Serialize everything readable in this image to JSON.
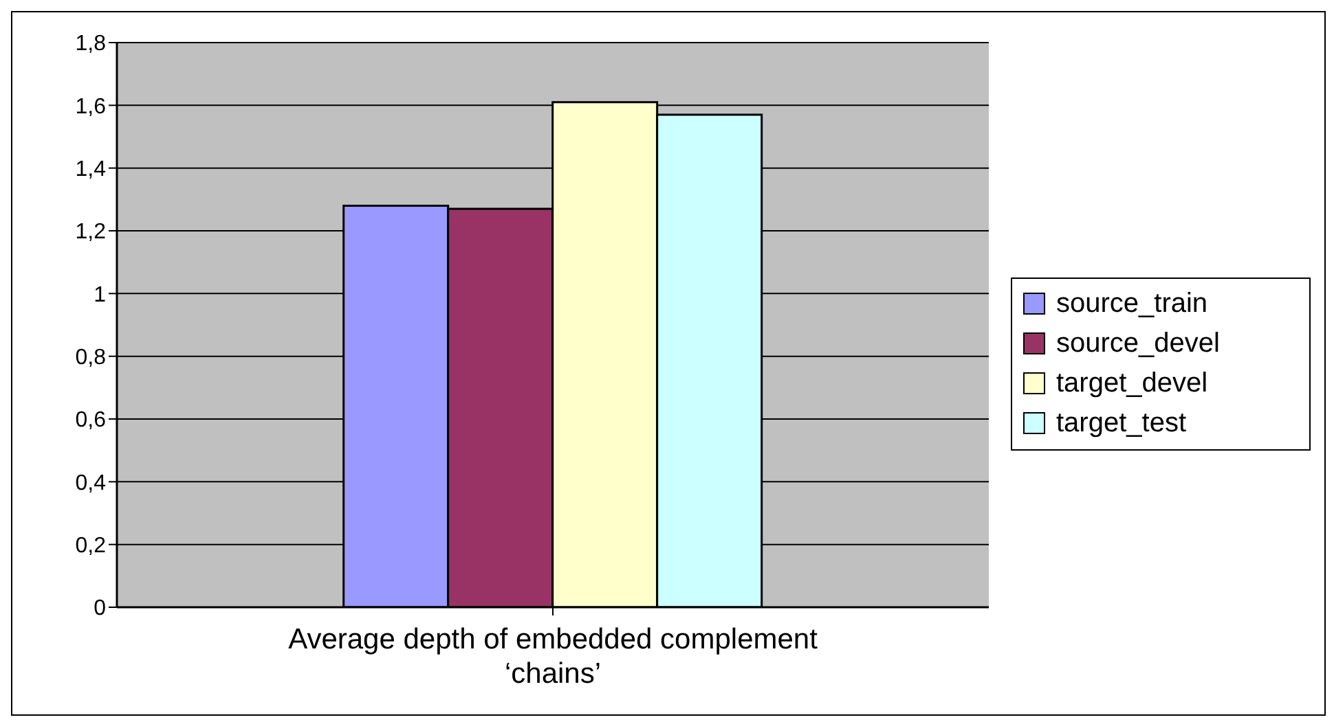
{
  "chart_data": {
    "type": "bar",
    "categories": [
      "Average depth of embedded complement ‘chains’"
    ],
    "series": [
      {
        "name": "source_train",
        "color": "#9999ff",
        "values": [
          1.28
        ]
      },
      {
        "name": "source_devel",
        "color": "#993366",
        "values": [
          1.27
        ]
      },
      {
        "name": "target_devel",
        "color": "#ffffcc",
        "values": [
          1.61
        ]
      },
      {
        "name": "target_test",
        "color": "#ccffff",
        "values": [
          1.57
        ]
      }
    ],
    "ylim": [
      0,
      1.8
    ],
    "yticks": [
      {
        "value": 0,
        "label": "0"
      },
      {
        "value": 0.2,
        "label": "0,2"
      },
      {
        "value": 0.4,
        "label": "0,4"
      },
      {
        "value": 0.6,
        "label": "0,6"
      },
      {
        "value": 0.8,
        "label": "0,8"
      },
      {
        "value": 1,
        "label": "1"
      },
      {
        "value": 1.2,
        "label": "1,2"
      },
      {
        "value": 1.4,
        "label": "1,4"
      },
      {
        "value": 1.6,
        "label": "1,6"
      },
      {
        "value": 1.8,
        "label": "1,8"
      }
    ],
    "grid": "y",
    "legend": "right"
  }
}
